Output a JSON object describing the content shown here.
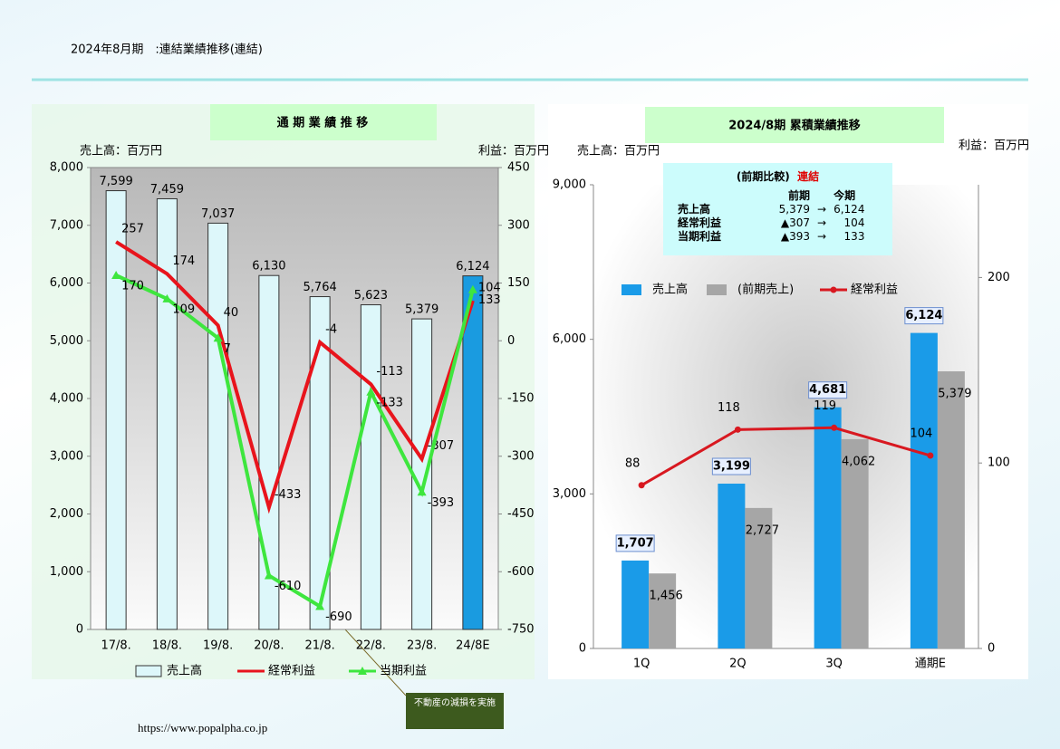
{
  "title": "2024年8月期　:連結業績推移(連結)",
  "footer": "https://www.popalpha.co.jp",
  "chart_data": [
    {
      "type": "bar",
      "title": "通 期 業 績 推 移",
      "y_unit": "売上高：百万円",
      "y2_unit": "利益：百万円",
      "categories": [
        "17/8.",
        "18/8.",
        "19/8.",
        "20/8.",
        "21/8.",
        "22/8.",
        "23/8.",
        "24/8E"
      ],
      "series": [
        {
          "name": "売上高",
          "type": "bar",
          "color": "#ddf7fa",
          "colors": [
            "#ddf7fa",
            "#ddf7fa",
            "#ddf7fa",
            "#ddf7fa",
            "#ddf7fa",
            "#ddf7fa",
            "#ddf7fa",
            "#1a9be0"
          ],
          "values": [
            7599,
            7459,
            7037,
            6130,
            5764,
            5623,
            5379,
            6124
          ],
          "value_labels": [
            "7,599",
            "7,459",
            "7,037",
            "6,130",
            "5,764",
            "5,623",
            "5,379",
            "6,124"
          ]
        },
        {
          "name": "経常利益",
          "type": "line",
          "axis": "y2",
          "color": "#e8141c",
          "values": [
            257,
            174,
            40,
            -433,
            -4,
            -113,
            -307,
            104
          ]
        },
        {
          "name": "当期利益",
          "type": "line",
          "axis": "y2",
          "color": "#3ee63e",
          "marker": "triangle",
          "values": [
            170,
            109,
            7,
            -610,
            -690,
            -133,
            -393,
            133
          ]
        }
      ],
      "ylim": [
        0,
        8000
      ],
      "yticks": [
        0,
        {
          "value": 1000,
          "label": "1,000"
        },
        {
          "value": 2000,
          "label": "2,000"
        },
        {
          "value": 3000,
          "label": "3,000"
        },
        {
          "value": 4000,
          "label": "4,000"
        },
        {
          "value": 5000,
          "label": "5,000"
        },
        {
          "value": 6000,
          "label": "6,000"
        },
        {
          "value": 7000,
          "label": "7,000"
        },
        {
          "value": 8000,
          "label": "8,000"
        }
      ],
      "y2lim": [
        -750,
        450
      ],
      "y2ticks": [
        -750,
        -600,
        -450,
        -300,
        -150,
        0,
        150,
        300,
        450
      ],
      "annotation": "不動産の減損を実施"
    },
    {
      "type": "bar",
      "title": "2024/8期 累積業績推移",
      "y_unit": "売上高：百万円",
      "y2_unit": "利益：百万円",
      "categories": [
        "1Q",
        "2Q",
        "3Q",
        "通期E"
      ],
      "series": [
        {
          "name": "売上高",
          "type": "bar",
          "color": "#1a9be8",
          "values": [
            1707,
            3199,
            4681,
            6124
          ],
          "value_labels": [
            "1,707",
            "3,199",
            "4,681",
            "6,124"
          ]
        },
        {
          "name": "(前期売上)",
          "type": "bar",
          "color": "#a6a6a6",
          "values": [
            1456,
            2727,
            4062,
            5379
          ],
          "value_labels": [
            "1,456",
            "2,727",
            "4,062",
            "5,379"
          ]
        },
        {
          "name": "経常利益",
          "type": "line",
          "axis": "y2",
          "color": "#d81820",
          "marker": "circle",
          "values": [
            88,
            118,
            119,
            104
          ]
        }
      ],
      "ylim": [
        0,
        9000
      ],
      "yticks": [
        0,
        {
          "value": 3000,
          "label": "3,000"
        },
        {
          "value": 6000,
          "label": "6,000"
        },
        {
          "value": 9000,
          "label": "9,000"
        }
      ],
      "y2lim": [
        0,
        250
      ],
      "y2ticks": [
        0,
        100,
        200
      ],
      "comparison": {
        "title": "(前期比較)",
        "title_note": "連結",
        "columns": [
          "前期",
          "今期"
        ],
        "rows": [
          [
            "売上高",
            "5,379",
            "→",
            "6,124"
          ],
          [
            "経常利益",
            "▲307",
            "→",
            "104"
          ],
          [
            "当期利益",
            "▲393",
            "→",
            "133"
          ]
        ]
      }
    }
  ]
}
